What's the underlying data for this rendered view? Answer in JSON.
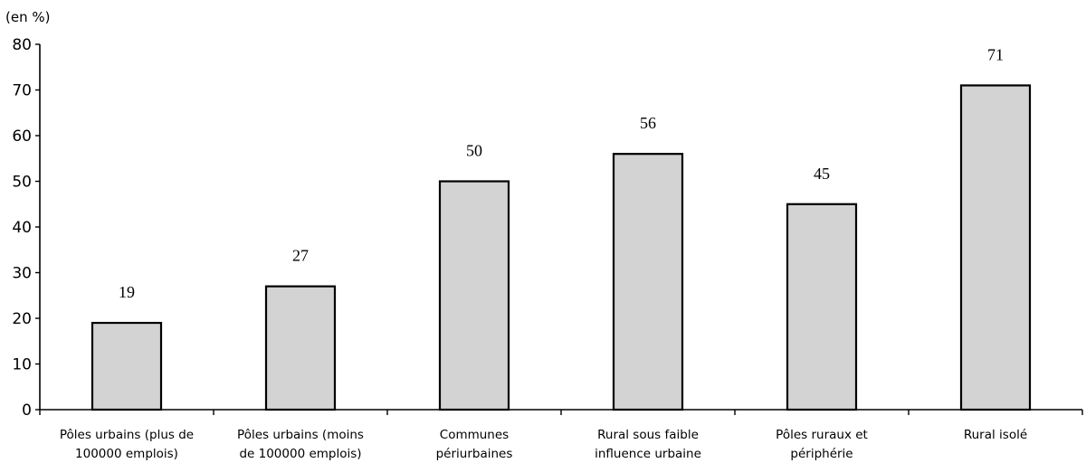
{
  "chart_data": {
    "type": "bar",
    "unit_label": "(en %)",
    "categories": [
      [
        "Pôles urbains (plus de",
        "100000 emplois)"
      ],
      [
        "Pôles urbains (moins",
        "de 100000 emplois)"
      ],
      [
        "Communes",
        "périurbaines"
      ],
      [
        "Rural sous faible",
        "influence urbaine"
      ],
      [
        "Pôles ruraux et",
        "périphérie"
      ],
      [
        "Rural isolé"
      ]
    ],
    "values": [
      19,
      27,
      50,
      56,
      45,
      71
    ],
    "ylim": [
      0,
      80
    ],
    "yticks": [
      0,
      10,
      20,
      30,
      40,
      50,
      60,
      70,
      80
    ],
    "grid": false,
    "bar_color": "#d3d3d3",
    "edge_color": "#000000"
  }
}
